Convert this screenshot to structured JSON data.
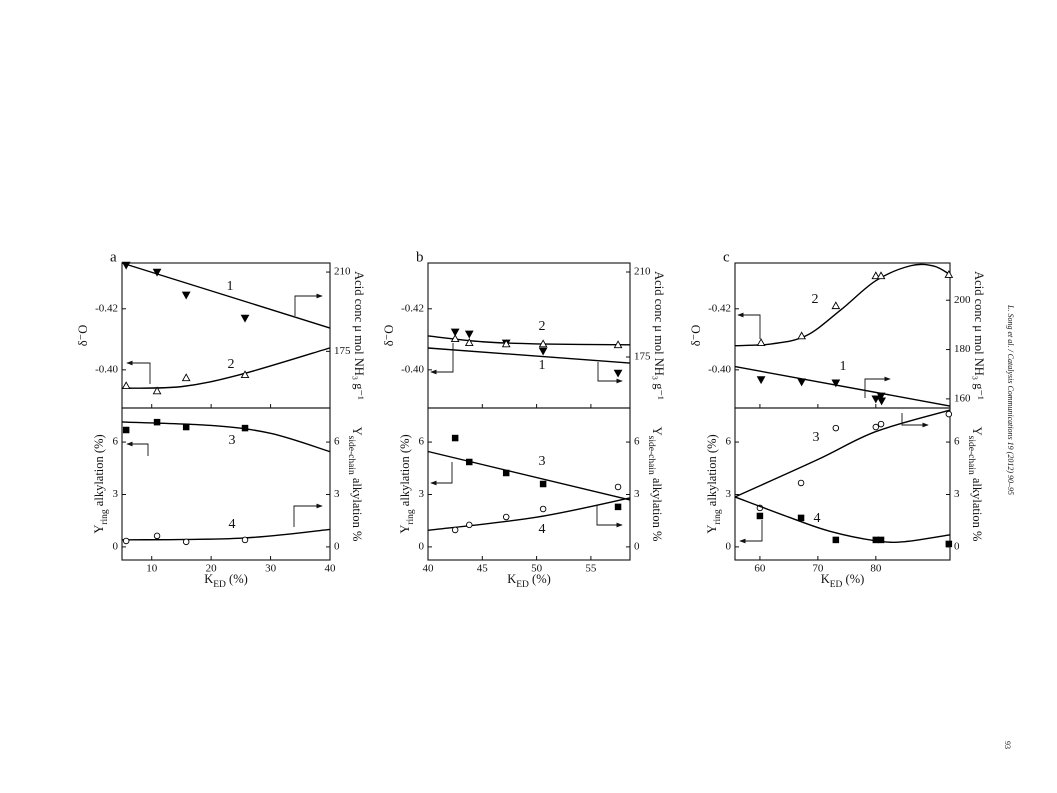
{
  "page": {
    "running_head": "L. Song et al. / Catalysis Communications 19 (2012) 90–95",
    "page_number": "93"
  },
  "chart_data": [
    {
      "type": "scatter",
      "title": "a",
      "x_label": {
        "main": "K",
        "sub": "ED",
        "rest": " (%)"
      },
      "xlim": [
        5,
        40
      ],
      "xticks": [
        10,
        20,
        30,
        40
      ],
      "subplots": [
        {
          "y_label": "δ⁻O",
          "y2_label": "Acid conc μ mol NH₃ g⁻¹",
          "ylim": [
            -0.3875,
            -0.435
          ],
          "yticks": [
            -0.42,
            {
              "value": -0.4,
              "label": "-0.40"
            }
          ],
          "y2lim": [
            150,
            214
          ],
          "y2ticks": [
            210,
            175
          ],
          "series": [
            {
              "name": "1",
              "axis": "y2",
              "marker": "triangle-down",
              "filled": true,
              "color": "#000000",
              "x": [
                5.7,
                10.9,
                15.8,
                25.7
              ],
              "values": [
                213.1,
                210,
                199.9,
                189.7
              ],
              "fit_x": [
                5,
                40
              ],
              "fit_values": [
                214,
                185.3
              ]
            },
            {
              "name": "2",
              "axis": "y",
              "marker": "triangle-up",
              "filled": false,
              "color": "#000000",
              "x": [
                5.7,
                10.9,
                15.8,
                25.7
              ],
              "values": [
                -0.3948,
                -0.3931,
                -0.3974,
                -0.3984
              ],
              "fit_x": [
                5,
                15,
                25,
                40
              ],
              "fit_values": [
                -0.394,
                -0.3945,
                -0.3985,
                -0.4072
              ]
            }
          ]
        },
        {
          "y_label": {
            "main": "Y",
            "sub": "ring",
            "rest": " alkylation (%)"
          },
          "y2_label": {
            "main": "Y",
            "sub": "side-chain",
            "rest": " alkylation %"
          },
          "ylim": [
            -0.75,
            7.95
          ],
          "yticks": [
            0,
            3,
            6
          ],
          "y2lim": [
            -0.75,
            7.95
          ],
          "y2ticks": [
            0,
            3,
            6
          ],
          "series": [
            {
              "name": "3",
              "axis": "y",
              "marker": "square",
              "filled": true,
              "color": "#000000",
              "x": [
                5.7,
                10.9,
                15.8,
                25.7
              ],
              "values": [
                6.69,
                7.14,
                6.86,
                6.8
              ],
              "fit_x": [
                5,
                20,
                30,
                40
              ],
              "fit_values": [
                7.15,
                6.95,
                6.5,
                5.45
              ]
            },
            {
              "name": "4",
              "axis": "y2",
              "marker": "circle",
              "filled": false,
              "color": "#000000",
              "x": [
                5.7,
                10.9,
                15.8,
                25.7
              ],
              "values": [
                0.34,
                0.63,
                0.29,
                0.4
              ],
              "fit_x": [
                5,
                25,
                40
              ],
              "fit_values": [
                0.4,
                0.5,
                1.0
              ]
            }
          ]
        }
      ]
    },
    {
      "type": "scatter",
      "title": "b",
      "x_label": {
        "main": "K",
        "sub": "ED",
        "rest": " (%)"
      },
      "xlim": [
        40,
        58.6
      ],
      "xticks": [
        40,
        45,
        50,
        55
      ],
      "subplots": [
        {
          "y_label": "δ⁻O",
          "y2_label": "Acid conc μ mol NH₃ g⁻¹",
          "ylim": [
            -0.3875,
            -0.435
          ],
          "yticks": [
            -0.42,
            {
              "value": -0.4,
              "label": "-0.40"
            }
          ],
          "y2lim": [
            154,
            213.7
          ],
          "y2ticks": [
            210,
            175
          ],
          "series": [
            {
              "name": "1",
              "axis": "y2",
              "marker": "triangle-down",
              "filled": true,
              "color": "#000000",
              "x": [
                42.5,
                43.8,
                47.2,
                50.6,
                57.5
              ],
              "values": [
                185.3,
                184.5,
                180.8,
                177.5,
                168.4
              ],
              "fit_x": [
                40,
                58.6
              ],
              "fit_values": [
                178.7,
                172.5
              ]
            },
            {
              "name": "2",
              "axis": "y",
              "marker": "triangle-up",
              "filled": false,
              "color": "#000000",
              "x": [
                42.5,
                43.8,
                47.2,
                50.6,
                57.5
              ],
              "values": [
                -0.4102,
                -0.4089,
                -0.4085,
                -0.4085,
                -0.4082
              ],
              "fit_x": [
                40,
                45,
                50,
                58.6
              ],
              "fit_values": [
                -0.4111,
                -0.4092,
                -0.4085,
                -0.4082
              ]
            }
          ]
        },
        {
          "y_label": {
            "main": "Y",
            "sub": "ring",
            "rest": " alkylation (%)"
          },
          "y2_label": {
            "main": "Y",
            "sub": "side-chain",
            "rest": " alkylation %"
          },
          "ylim": [
            -0.75,
            7.95
          ],
          "yticks": [
            0,
            3,
            6
          ],
          "y2lim": [
            -0.75,
            7.95
          ],
          "y2ticks": [
            0,
            3,
            6
          ],
          "series": [
            {
              "name": "3",
              "axis": "y",
              "marker": "square",
              "filled": true,
              "color": "#000000",
              "x": [
                42.5,
                43.8,
                47.2,
                50.6,
                57.5
              ],
              "values": [
                6.23,
                4.86,
                4.23,
                3.6,
                2.29
              ],
              "fit_x": [
                40,
                58.6
              ],
              "fit_values": [
                5.46,
                2.69
              ]
            },
            {
              "name": "4",
              "axis": "y2",
              "marker": "circle",
              "filled": false,
              "color": "#000000",
              "x": [
                42.5,
                43.8,
                47.2,
                50.6,
                57.5
              ],
              "values": [
                0.97,
                1.26,
                1.71,
                2.17,
                3.43
              ],
              "fit_x": [
                40,
                50,
                58.6
              ],
              "fit_values": [
                0.95,
                1.7,
                2.8
              ]
            }
          ]
        }
      ]
    },
    {
      "type": "scatter",
      "title": "c",
      "x_label": {
        "main": "K",
        "sub": "ED",
        "rest": " (%)"
      },
      "xlim": [
        55.7,
        92.8
      ],
      "xticks": [
        60,
        70,
        80
      ],
      "subplots": [
        {
          "y_label": "δ⁻O",
          "y2_label": "Acid conc μ mol NH₃ g⁻¹",
          "ylim": [
            -0.3875,
            -0.435
          ],
          "yticks": [
            -0.42,
            {
              "value": -0.4,
              "label": "-0.40"
            }
          ],
          "y2lim": [
            156.3,
            215.1
          ],
          "y2ticks": [
            200,
            180,
            160
          ],
          "series": [
            {
              "name": "1",
              "axis": "y2",
              "marker": "triangle-down",
              "filled": true,
              "color": "#000000",
              "x": [
                60.2,
                67.2,
                73.1,
                80,
                80.9,
                81
              ],
              "values": [
                167.8,
                166.9,
                166.5,
                160,
                161.2,
                159.2
              ],
              "fit_x": [
                55.7,
                92.8
              ],
              "fit_values": [
                173.1,
                157.1
              ]
            },
            {
              "name": "2",
              "axis": "y",
              "marker": "triangle-up",
              "filled": false,
              "color": "#000000",
              "x": [
                60.2,
                67.2,
                73.1,
                80,
                80.9,
                92.6
              ],
              "values": [
                -0.4089,
                -0.4111,
                -0.421,
                -0.4308,
                -0.4308,
                -0.4312
              ],
              "fit_x": [
                55.7,
                62,
                68,
                74,
                80,
                86,
                90,
                92.8
              ],
              "fit_values": [
                -0.4079,
                -0.4085,
                -0.4112,
                -0.4197,
                -0.4292,
                -0.4341,
                -0.434,
                -0.4312
              ]
            }
          ]
        },
        {
          "y_label": {
            "main": "Y",
            "sub": "ring",
            "rest": " alkylation (%)"
          },
          "y2_label": {
            "main": "Y",
            "sub": "side-chain",
            "rest": " alkylation %"
          },
          "ylim": [
            -0.75,
            7.95
          ],
          "yticks": [
            0,
            3,
            6
          ],
          "y2lim": [
            -0.75,
            7.95
          ],
          "y2ticks": [
            0,
            3,
            6
          ],
          "series": [
            {
              "name": "3",
              "axis": "y2",
              "marker": "circle",
              "filled": false,
              "color": "#000000",
              "x": [
                60,
                67.1,
                73.1,
                80,
                80.9,
                92.6
              ],
              "values": [
                2.23,
                3.66,
                6.8,
                6.86,
                7.03,
                7.6
              ],
              "fit_x": [
                55.7,
                70,
                80,
                92.8
              ],
              "fit_values": [
                2.86,
                5.0,
                6.6,
                7.83
              ]
            },
            {
              "name": "4",
              "axis": "y",
              "marker": "square",
              "filled": true,
              "color": "#000000",
              "x": [
                60,
                67.1,
                73.1,
                80,
                80.9,
                92.6
              ],
              "values": [
                1.77,
                1.66,
                0.4,
                0.4,
                0.4,
                0.17
              ],
              "fit_x": [
                55.7,
                65,
                72,
                80,
                85,
                92.8
              ],
              "fit_values": [
                2.86,
                1.7,
                0.9,
                0.35,
                0.3,
                0.69
              ]
            }
          ]
        }
      ]
    }
  ]
}
